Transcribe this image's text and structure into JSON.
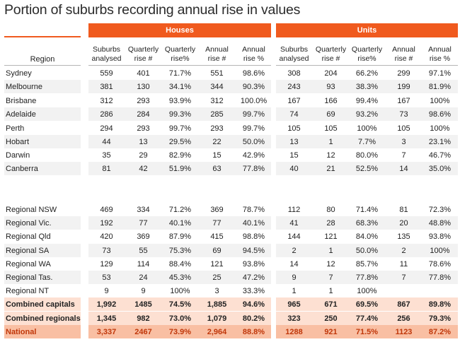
{
  "title": "Portion of suburbs recording annual rise in values",
  "groups": {
    "houses": "Houses",
    "units": "Units"
  },
  "region_header": "Region",
  "column_headers": [
    "Suburbs\nanalysed",
    "Quarterly\nrise #",
    "Quarterly\nrise%",
    "Annual\nrise #",
    "Annual\nrise %",
    "Suburbs\nanalysed",
    "Quarterly\nrise #",
    "Quarterly\nrise%",
    "Annual\nrise #",
    "Annual\nrise %"
  ],
  "rows": [
    {
      "region": "Sydney",
      "values": [
        "559",
        "401",
        "71.7%",
        "551",
        "98.6%",
        "308",
        "204",
        "66.2%",
        "299",
        "97.1%"
      ]
    },
    {
      "region": "Melbourne",
      "values": [
        "381",
        "130",
        "34.1%",
        "344",
        "90.3%",
        "243",
        "93",
        "38.3%",
        "199",
        "81.9%"
      ]
    },
    {
      "region": "Brisbane",
      "values": [
        "312",
        "293",
        "93.9%",
        "312",
        "100.0%",
        "167",
        "166",
        "99.4%",
        "167",
        "100%"
      ]
    },
    {
      "region": "Adelaide",
      "values": [
        "286",
        "284",
        "99.3%",
        "285",
        "99.7%",
        "74",
        "69",
        "93.2%",
        "73",
        "98.6%"
      ]
    },
    {
      "region": "Perth",
      "values": [
        "294",
        "293",
        "99.7%",
        "293",
        "99.7%",
        "105",
        "105",
        "100%",
        "105",
        "100%"
      ]
    },
    {
      "region": "Hobart",
      "values": [
        "44",
        "13",
        "29.5%",
        "22",
        "50.0%",
        "13",
        "1",
        "7.7%",
        "3",
        "23.1%"
      ]
    },
    {
      "region": "Darwin",
      "values": [
        "35",
        "29",
        "82.9%",
        "15",
        "42.9%",
        "15",
        "12",
        "80.0%",
        "7",
        "46.7%"
      ]
    },
    {
      "region": "Canberra",
      "values": [
        "81",
        "42",
        "51.9%",
        "63",
        "77.8%",
        "40",
        "21",
        "52.5%",
        "14",
        "35.0%"
      ]
    },
    {
      "region": "",
      "values": [
        "",
        "",
        "",
        "",
        "",
        "",
        "",
        "",
        "",
        ""
      ]
    },
    {
      "region": "Regional NSW",
      "values": [
        "469",
        "334",
        "71.2%",
        "369",
        "78.7%",
        "112",
        "80",
        "71.4%",
        "81",
        "72.3%"
      ]
    },
    {
      "region": "Regional Vic.",
      "values": [
        "192",
        "77",
        "40.1%",
        "77",
        "40.1%",
        "41",
        "28",
        "68.3%",
        "20",
        "48.8%"
      ]
    },
    {
      "region": "Regional Qld",
      "values": [
        "420",
        "369",
        "87.9%",
        "415",
        "98.8%",
        "144",
        "121",
        "84.0%",
        "135",
        "93.8%"
      ]
    },
    {
      "region": "Regional SA",
      "values": [
        "73",
        "55",
        "75.3%",
        "69",
        "94.5%",
        "2",
        "1",
        "50.0%",
        "2",
        "100%"
      ]
    },
    {
      "region": "Regional WA",
      "values": [
        "129",
        "114",
        "88.4%",
        "121",
        "93.8%",
        "14",
        "12",
        "85.7%",
        "11",
        "78.6%"
      ]
    },
    {
      "region": "Regional Tas.",
      "values": [
        "53",
        "24",
        "45.3%",
        "25",
        "47.2%",
        "9",
        "7",
        "77.8%",
        "7",
        "77.8%"
      ]
    },
    {
      "region": "Regional NT",
      "values": [
        "9",
        "9",
        "100%",
        "3",
        "33.3%",
        "1",
        "1",
        "100%",
        "",
        ""
      ]
    },
    {
      "region": "",
      "values": [
        "",
        "",
        "",
        "",
        "",
        "",
        "",
        "",
        "",
        ""
      ]
    },
    {
      "region": "Combined capitals",
      "values": [
        "1,992",
        "1485",
        "74.5%",
        "1,885",
        "94.6%",
        "965",
        "671",
        "69.5%",
        "867",
        "89.8%"
      ]
    },
    {
      "region": "Combined regionals",
      "values": [
        "1,345",
        "982",
        "73.0%",
        "1,079",
        "80.2%",
        "323",
        "250",
        "77.4%",
        "256",
        "79.3%"
      ]
    },
    {
      "region": "National",
      "values": [
        "3,337",
        "2467",
        "73.9%",
        "2,964",
        "88.8%",
        "1288",
        "921",
        "71.5%",
        "1123",
        "87.2%"
      ]
    }
  ],
  "colors": {
    "accent": "#f05a1e",
    "row_shade": "#f2f2f2",
    "total_shade": "#fde0d2",
    "national_shade": "#f9bfa3",
    "national_text": "#c0370a"
  }
}
